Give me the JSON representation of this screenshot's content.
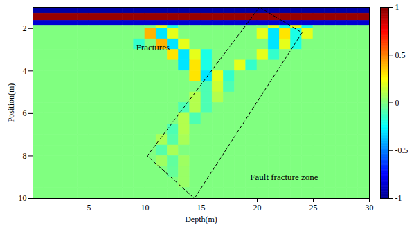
{
  "chart_data": {
    "type": "heatmap",
    "x_label": "Depth(m)",
    "y_label": "Position(m)",
    "xlim": [
      0,
      30
    ],
    "ylim": [
      10,
      1
    ],
    "xticks": [
      5,
      10,
      15,
      20,
      25,
      30
    ],
    "yticks": [
      2,
      4,
      6,
      8,
      10
    ],
    "color": "jet",
    "x_edges": [
      0,
      1,
      2,
      3,
      4,
      5,
      6,
      7,
      8,
      9,
      10,
      11,
      12,
      13,
      14,
      15,
      16,
      17,
      18,
      19,
      20,
      21,
      22,
      23,
      24,
      25,
      26,
      27,
      28,
      29,
      30
    ],
    "y_edges": [
      1.0,
      1.3,
      1.63,
      1.86,
      2.0,
      2.5,
      3.0,
      3.5,
      4.0,
      4.5,
      5.0,
      5.5,
      6.0,
      6.5,
      7.0,
      7.5,
      8.0,
      8.5,
      9.0,
      9.5,
      10.0
    ],
    "cells": [
      [
        -0.95,
        -0.95,
        -0.95,
        -0.95,
        -0.95,
        -0.95,
        -0.95,
        -0.95,
        -0.95,
        -0.95,
        -0.95,
        -0.95,
        -0.95,
        -0.95,
        -0.95,
        -0.95,
        -0.95,
        -0.95,
        -0.95,
        -0.95,
        -0.95,
        -0.95,
        -0.95,
        -0.95,
        -0.95,
        -0.95,
        -0.95,
        -0.95,
        -0.95,
        -0.95
      ],
      [
        0.95,
        0.95,
        0.95,
        0.95,
        0.95,
        0.95,
        0.95,
        0.95,
        0.95,
        0.95,
        0.95,
        0.95,
        0.95,
        0.95,
        0.95,
        0.95,
        0.95,
        0.95,
        0.95,
        0.95,
        0.95,
        0.95,
        0.95,
        0.95,
        0.95,
        0.95,
        0.95,
        0.95,
        0.95,
        0.95
      ],
      [
        -0.85,
        -0.85,
        -0.85,
        -0.85,
        -0.85,
        -0.85,
        -0.85,
        -0.85,
        -0.85,
        -0.85,
        -0.85,
        -0.85,
        -0.85,
        -0.85,
        -0.85,
        -0.85,
        -0.85,
        -0.85,
        -0.85,
        -0.85,
        -0.85,
        -0.85,
        -0.85,
        -0.85,
        -0.85,
        -0.85,
        -0.85,
        -0.85,
        -0.85,
        -0.85
      ],
      [
        0,
        0,
        0,
        0,
        0,
        0,
        0,
        0,
        0,
        0,
        0,
        0.2,
        -0.2,
        0,
        0,
        0,
        0,
        0,
        0,
        0,
        0,
        0.2,
        -0.2,
        0.2,
        -0.2,
        0,
        0,
        0,
        0,
        0
      ],
      [
        0,
        0,
        0,
        0,
        0,
        0,
        0,
        0,
        0,
        0,
        0.4,
        -0.3,
        0.2,
        0,
        0,
        0,
        0,
        0,
        0,
        0,
        0.2,
        -0.3,
        0.3,
        -0.2,
        0.2,
        0,
        0,
        0,
        0,
        0
      ],
      [
        0,
        0,
        0,
        0,
        0,
        0,
        0,
        0,
        0,
        -0.15,
        0,
        0.4,
        -0.3,
        0.2,
        0,
        0,
        0,
        0,
        0,
        0,
        0,
        -0.3,
        0.2,
        -0.2,
        0,
        0,
        0,
        0,
        0,
        0
      ],
      [
        0,
        0,
        0,
        0,
        0,
        0,
        0,
        0,
        0,
        0,
        0,
        0,
        0.3,
        -0.3,
        0.2,
        -0.2,
        0,
        0,
        0,
        0,
        0.2,
        -0.15,
        0,
        0,
        0,
        0,
        0,
        0,
        0,
        0
      ],
      [
        0,
        0,
        0,
        0,
        0,
        0,
        0,
        0,
        0,
        0,
        0,
        0,
        0,
        -0.3,
        0.3,
        -0.2,
        0,
        0,
        0.2,
        -0.15,
        0,
        0,
        0,
        0,
        0,
        0,
        0,
        0,
        0,
        0
      ],
      [
        0,
        0,
        0,
        0,
        0,
        0,
        0,
        0,
        0,
        0,
        0,
        0,
        0,
        0,
        0.3,
        -0.3,
        0.2,
        -0.15,
        0,
        0,
        0,
        0,
        0,
        0,
        0,
        0,
        0,
        0,
        0,
        0
      ],
      [
        0,
        0,
        0,
        0,
        0,
        0,
        0,
        0,
        0,
        0,
        0,
        0,
        0,
        0,
        0,
        -0.1,
        0.15,
        -0.1,
        0,
        0,
        0,
        0,
        0,
        0,
        0,
        0,
        0,
        0,
        0,
        0
      ],
      [
        0,
        0,
        0,
        0,
        0,
        0,
        0,
        0,
        0,
        0,
        0,
        0,
        0,
        0,
        0.1,
        -0.1,
        0.1,
        0,
        0,
        0,
        0,
        0,
        0,
        0,
        0,
        0,
        0,
        0,
        0,
        0
      ],
      [
        0,
        0,
        0,
        0,
        0,
        0,
        0,
        0,
        0,
        0,
        0,
        0,
        0,
        -0.1,
        0.1,
        -0.1,
        0,
        0,
        0,
        0,
        0,
        0,
        0,
        0,
        0,
        0,
        0,
        0,
        0,
        0
      ],
      [
        0,
        0,
        0,
        0,
        0,
        0,
        0,
        0,
        0,
        0,
        0,
        0,
        0,
        0.1,
        -0.1,
        0,
        0,
        0,
        0,
        0,
        0,
        0,
        0,
        0,
        0,
        0,
        0,
        0,
        0,
        0
      ],
      [
        0,
        0,
        0,
        0,
        0,
        0,
        0,
        0,
        0,
        0,
        0,
        0,
        -0.1,
        0.1,
        0,
        0,
        0,
        0,
        0,
        0,
        0,
        0,
        0,
        0,
        0,
        0,
        0,
        0,
        0,
        0
      ],
      [
        0,
        0,
        0,
        0,
        0,
        0,
        0,
        0,
        0,
        0,
        0,
        0.08,
        -0.08,
        0.08,
        0,
        0,
        0,
        0,
        0,
        0,
        0,
        0,
        0,
        0,
        0,
        0,
        0,
        0,
        0,
        0
      ],
      [
        0,
        0,
        0,
        0,
        0,
        0,
        0,
        0,
        0,
        0,
        0,
        -0.08,
        0.08,
        0,
        0,
        0,
        0,
        0,
        0,
        0,
        0,
        0,
        0,
        0,
        0,
        0,
        0,
        0,
        0,
        0
      ],
      [
        0,
        0,
        0,
        0,
        0,
        0,
        0,
        0,
        0,
        0,
        0,
        0.06,
        -0.06,
        0.06,
        0,
        0,
        0,
        0,
        0,
        0,
        0,
        0,
        0,
        0,
        0,
        0,
        0,
        0,
        0,
        0
      ],
      [
        0,
        0,
        0,
        0,
        0,
        0,
        0,
        0,
        0,
        0,
        0,
        0,
        -0.05,
        0.05,
        0,
        0,
        0,
        0,
        0,
        0,
        0,
        0,
        0,
        0,
        0,
        0,
        0,
        0,
        0,
        0
      ],
      [
        0,
        0,
        0,
        0,
        0,
        0,
        0,
        0,
        0,
        0,
        0,
        0,
        0,
        0.05,
        0,
        0,
        0,
        0,
        0,
        0,
        0,
        0,
        0,
        0,
        0,
        0,
        0,
        0,
        0,
        0
      ],
      [
        0,
        0,
        0,
        0,
        0,
        0,
        0,
        0,
        0,
        0,
        0,
        0,
        0,
        0,
        0,
        0,
        0,
        0,
        0,
        0,
        0,
        0,
        0,
        0,
        0,
        0,
        0,
        0,
        0,
        0
      ]
    ],
    "colorbar": {
      "range": [
        -1,
        1
      ],
      "ticks": [
        -1,
        -0.5,
        0,
        0.5,
        1
      ]
    },
    "annotations": [
      {
        "text": "Fractures",
        "x": 10.7,
        "y": 2.9
      },
      {
        "text": "Fault fracture zone",
        "x": 22.4,
        "y": 9.0
      }
    ],
    "zone": {
      "polygon": [
        [
          20.2,
          1.0
        ],
        [
          24.0,
          2.2
        ],
        [
          14.4,
          10.0
        ],
        [
          10.2,
          8.0
        ]
      ],
      "line_style": "dashed"
    }
  }
}
